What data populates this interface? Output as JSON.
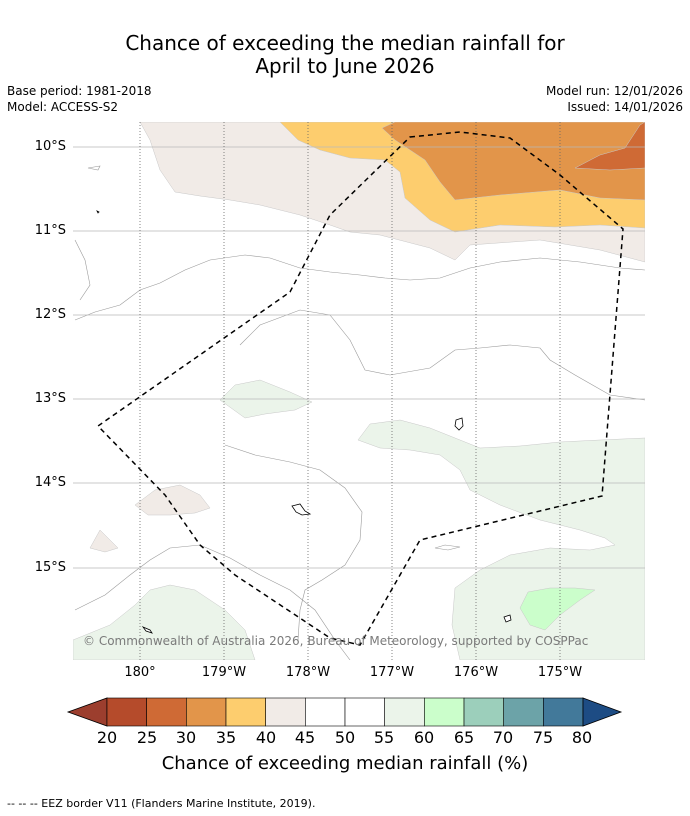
{
  "title": {
    "line1": "Chance of exceeding the median rainfall for",
    "line2": "April to June 2026"
  },
  "meta": {
    "base_period": "Base period: 1981-2018",
    "model": "Model: ACCESS-S2",
    "model_run": "Model run: 12/01/2026",
    "issued": "Issued: 14/01/2026"
  },
  "map": {
    "lat_labels": [
      "10°S",
      "11°S",
      "12°S",
      "13°S",
      "14°S",
      "15°S"
    ],
    "lon_labels": [
      "180°",
      "179°W",
      "178°W",
      "177°W",
      "176°W",
      "175°W"
    ],
    "copyright": "© Commonwealth of Australia 2026, Bureau of Meteorology, supported by COSPPac",
    "colors": {
      "c20_25": "#b54b2b",
      "c25_30": "#cf6a35",
      "c30_35": "#e2954a",
      "c35_40": "#fdcd6e",
      "c40_45": "#f1ebe7",
      "c45_55": "#ffffff",
      "c55_60": "#ebf4ea",
      "c60_65": "#cbfecb",
      "grid": "#b8b8b8",
      "border": "#000000"
    }
  },
  "colorbar": {
    "title": "Chance of exceeding median rainfall (%)",
    "ticks": [
      "20",
      "25",
      "30",
      "35",
      "40",
      "45",
      "50",
      "55",
      "60",
      "65",
      "70",
      "75",
      "80"
    ],
    "colors": [
      "#b54b2b",
      "#cf6a35",
      "#e2954a",
      "#fdcd6e",
      "#f1ebe7",
      "#ffffff",
      "#ffffff",
      "#ebf4ea",
      "#cbfecb",
      "#9ccfbb",
      "#6ca3a8",
      "#42799a"
    ],
    "under_color": "#9c3e2e",
    "over_color": "#1d4c84"
  },
  "footnote": "--  --  -- EEZ border V11 (Flanders Marine Institute, 2019)."
}
